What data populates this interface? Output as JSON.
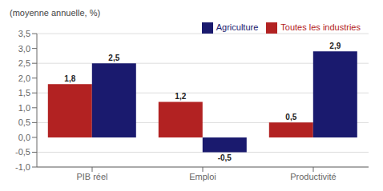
{
  "chart_data": {
    "type": "bar",
    "ylabel": "(moyenne annuelle, %)",
    "categories": [
      "PIB réel",
      "Emploi",
      "Productivité"
    ],
    "series": [
      {
        "name": "Toutes les industries",
        "color": "#B22222",
        "values": [
          1.8,
          1.2,
          0.5
        ],
        "value_labels": [
          "1,8",
          "1,2",
          "0,5"
        ]
      },
      {
        "name": "Agriculture",
        "color": "#1A1A6E",
        "values": [
          2.5,
          -0.5,
          2.9
        ],
        "value_labels": [
          "2,5",
          "-0,5",
          "2,9"
        ]
      }
    ],
    "ylim": [
      -1.0,
      3.5
    ],
    "yticks": [
      {
        "value": -1.0,
        "label": "-1,0"
      },
      {
        "value": -0.5,
        "label": "-0,5"
      },
      {
        "value": 0.0,
        "label": "0,0"
      },
      {
        "value": 0.5,
        "label": "0,5"
      },
      {
        "value": 1.0,
        "label": "1,0"
      },
      {
        "value": 1.5,
        "label": "1,5"
      },
      {
        "value": 2.0,
        "label": "2,0"
      },
      {
        "value": 2.5,
        "label": "2,5"
      },
      {
        "value": 3.0,
        "label": "3,0"
      },
      {
        "value": 3.5,
        "label": "3,5"
      }
    ],
    "grid": true,
    "legend": "upper right",
    "data_labels": true
  }
}
